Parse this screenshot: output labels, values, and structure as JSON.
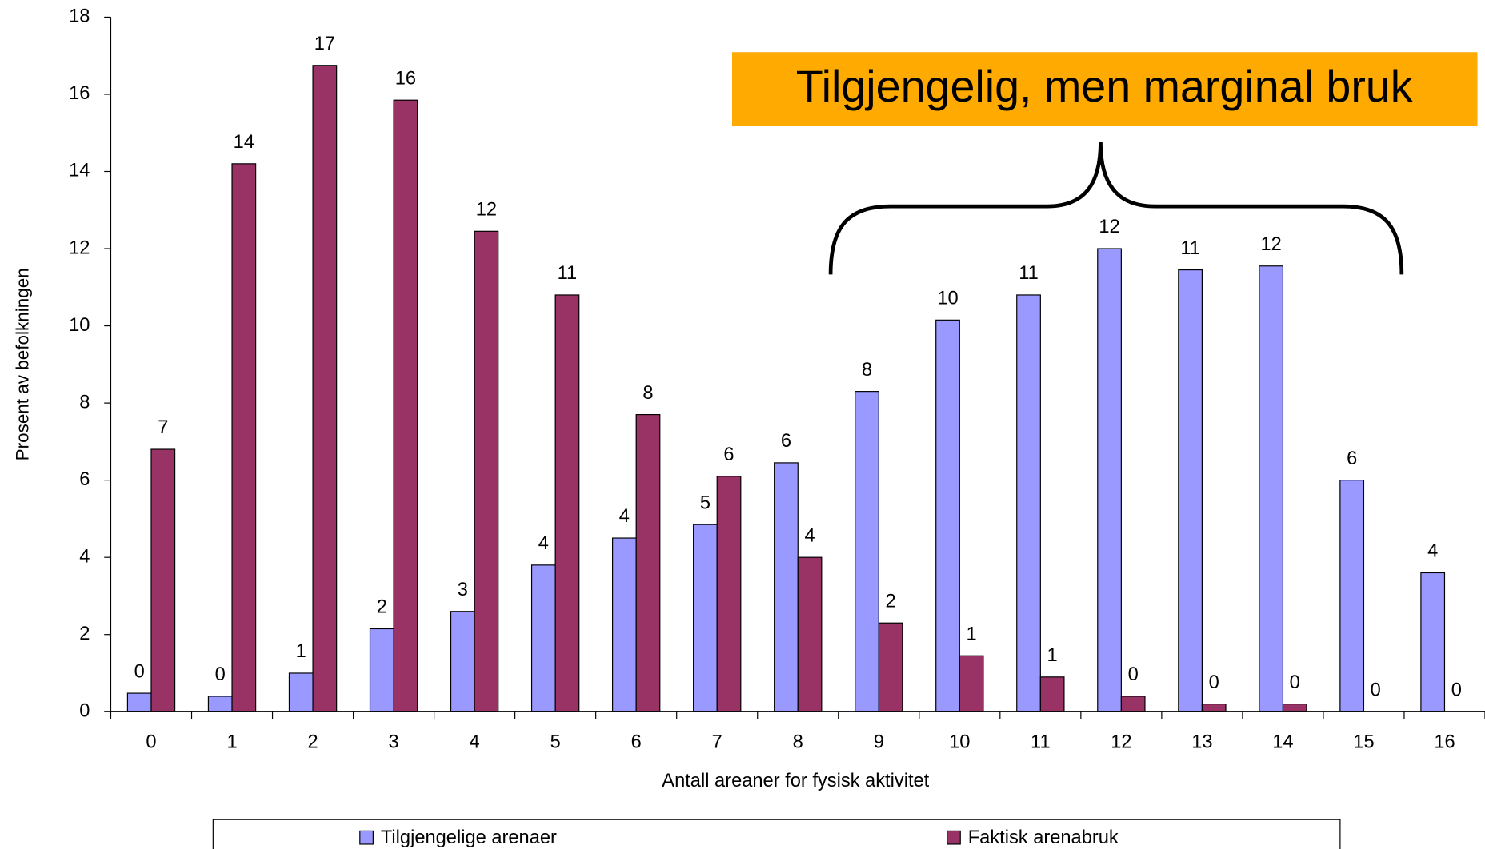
{
  "chart_data": {
    "type": "bar",
    "annotation": "Tilgjengelig, men marginal bruk",
    "xlabel": "Antall areaner for fysisk aktivitet",
    "ylabel": "Prosent av befolkningen",
    "categories": [
      "0",
      "1",
      "2",
      "3",
      "4",
      "5",
      "6",
      "7",
      "8",
      "9",
      "10",
      "11",
      "12",
      "13",
      "14",
      "15",
      "16"
    ],
    "series": [
      {
        "name": "Tilgjengelige arenaer",
        "color": "#9999ff",
        "values": [
          0.48,
          0.4,
          1.0,
          2.15,
          2.6,
          3.8,
          4.5,
          4.85,
          6.45,
          8.3,
          10.15,
          10.8,
          12.0,
          11.45,
          11.55,
          6.0,
          3.6
        ],
        "value_labels": [
          "0",
          "0",
          "1",
          "2",
          "3",
          "4",
          "4",
          "5",
          "6",
          "8",
          "10",
          "11",
          "12",
          "11",
          "12",
          "6",
          "4"
        ]
      },
      {
        "name": "Faktisk arenabruk",
        "color": "#993366",
        "values": [
          6.8,
          14.2,
          16.75,
          15.85,
          12.45,
          10.8,
          7.7,
          6.1,
          4.0,
          2.3,
          1.45,
          0.9,
          0.4,
          0.2,
          0.2,
          0,
          0
        ],
        "value_labels": [
          "7",
          "14",
          "17",
          "16",
          "12",
          "11",
          "8",
          "6",
          "4",
          "2",
          "1",
          "1",
          "0",
          "0",
          "0",
          "0",
          "0"
        ]
      }
    ],
    "ylim": [
      0,
      18
    ],
    "yticks": [
      0,
      2,
      4,
      6,
      8,
      10,
      12,
      14,
      16,
      18
    ],
    "legend": "bottom"
  }
}
